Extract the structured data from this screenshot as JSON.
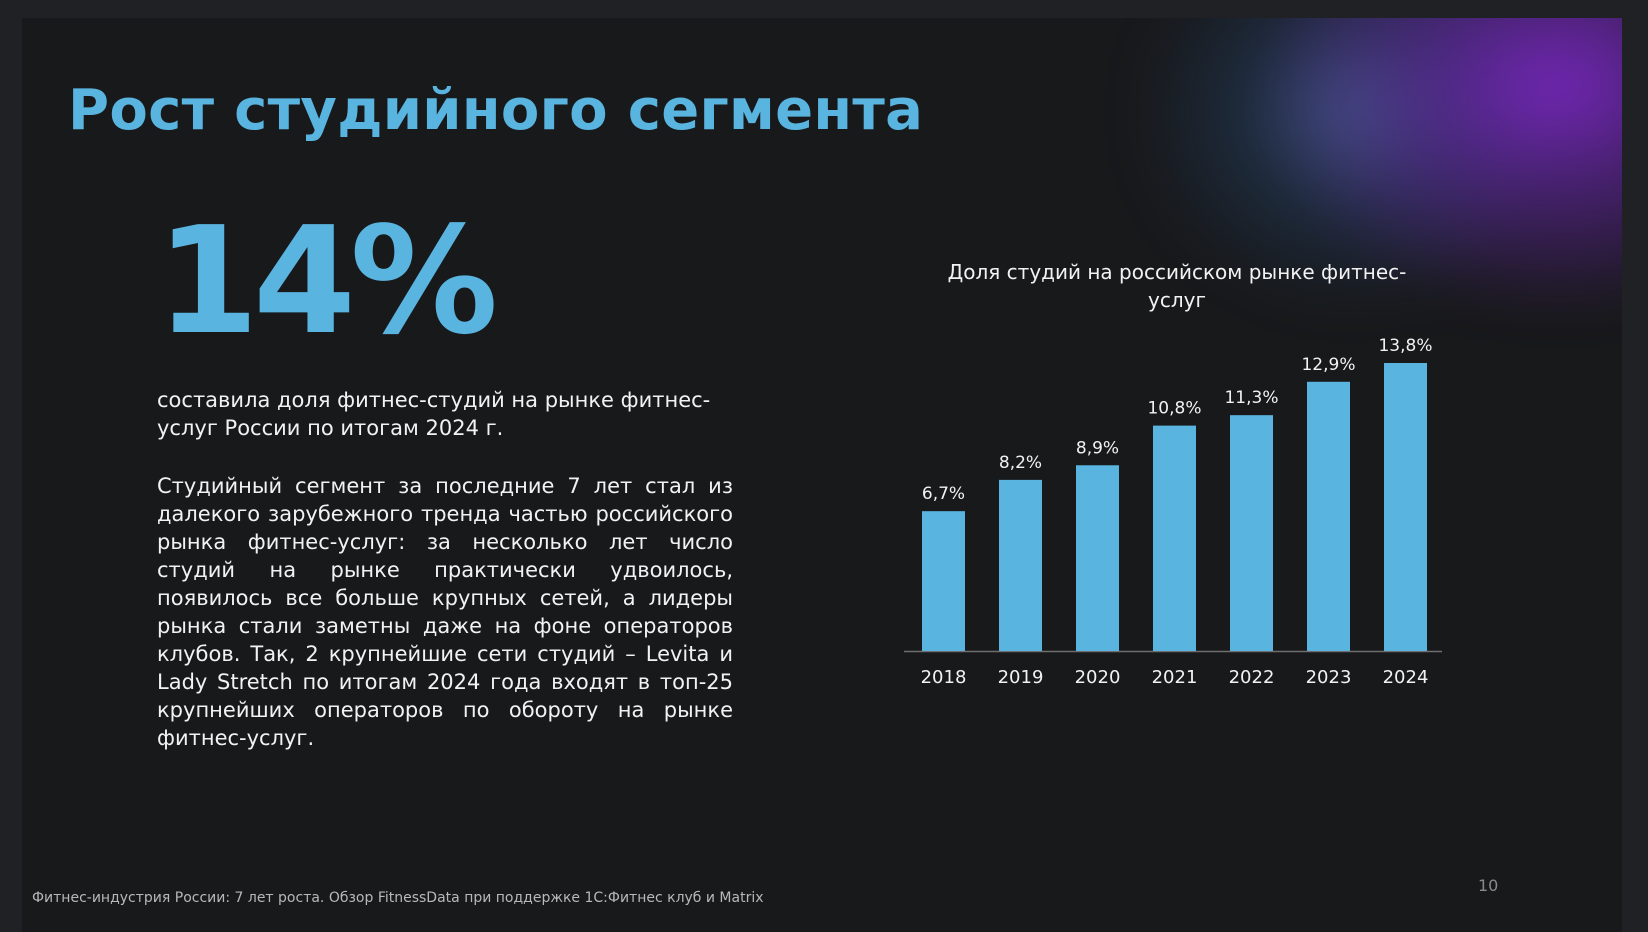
{
  "slide": {
    "title": "Рост студийного сегмента",
    "highlight_value": "14%",
    "highlight_caption": "составила доля фитнес-студий на рынке фитнес-услуг России по итогам 2024 г.",
    "body": "Студийный сегмент за последние 7 лет стал из далекого зарубежного тренда частью российского рынка фитнес-услуг: за несколько лет число студий на рынке практически удвоилось, появилось все больше крупных сетей, а лидеры рынка стали заметны даже на фоне операторов клубов. Так, 2 крупнейшие сети студий – Levita и Lady Stretch по итогам 2024 года входят в топ-25 крупнейших операторов по обороту на рынке фитнес-услуг.",
    "footer": "Фитнес-индустрия России: 7 лет роста. Обзор FitnessData при поддержке 1С:Фитнес клуб и Matrix",
    "page_number": "10"
  },
  "colors": {
    "accent": "#5ab4e0",
    "background": "#18191b",
    "text": "#f2f2f2"
  },
  "chart_data": {
    "type": "bar",
    "title": "Доля студий на российском рынке фитнес-услуг",
    "categories": [
      "2018",
      "2019",
      "2020",
      "2021",
      "2022",
      "2023",
      "2024"
    ],
    "values": [
      6.7,
      8.2,
      8.9,
      10.8,
      11.3,
      12.9,
      13.8
    ],
    "data_labels": [
      "6,7%",
      "8,2%",
      "8,9%",
      "10,8%",
      "11,3%",
      "12,9%",
      "13,8%"
    ],
    "ylim": [
      0,
      13.8
    ],
    "bar_color": "#5ab4e0",
    "grid": false,
    "xlabel": "",
    "ylabel": ""
  }
}
